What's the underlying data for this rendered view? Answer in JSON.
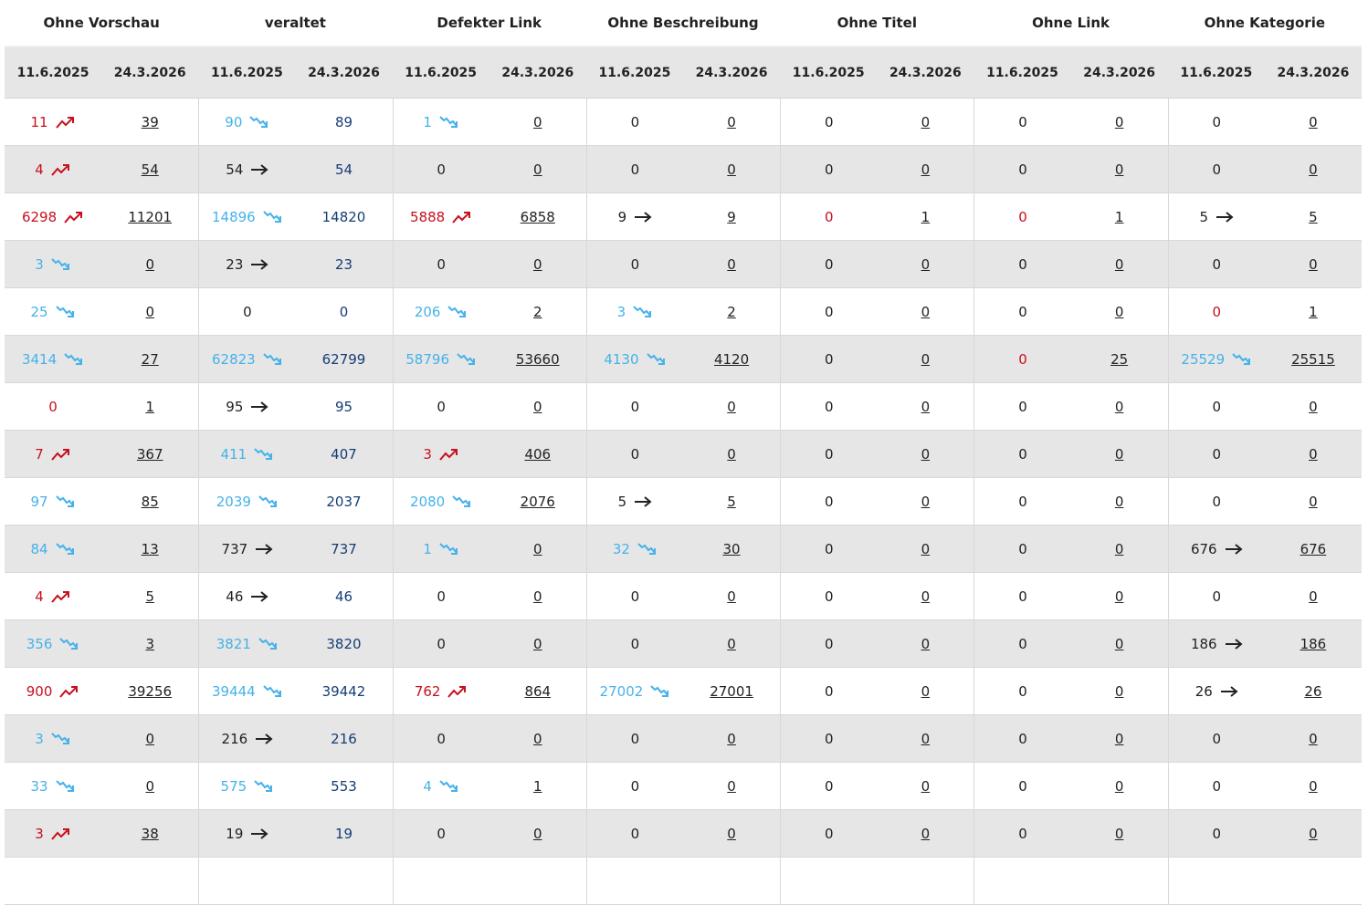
{
  "table": {
    "groups": [
      "Ohne Vorschau",
      "veraltet",
      "Defekter Link",
      "Ohne Beschreibung",
      "Ohne Titel",
      "Ohne Link",
      "Ohne Kategorie"
    ],
    "dates": [
      "11.6.2025",
      "24.3.2026"
    ],
    "rows": [
      [
        [
          11,
          39,
          "up"
        ],
        [
          90,
          89,
          "down"
        ],
        [
          1,
          0,
          "down"
        ],
        [
          0,
          0
        ],
        [
          0,
          0
        ],
        [
          0,
          0
        ],
        [
          0,
          0
        ]
      ],
      [
        [
          4,
          54,
          "up"
        ],
        [
          54,
          54,
          "flat"
        ],
        [
          0,
          0
        ],
        [
          0,
          0
        ],
        [
          0,
          0
        ],
        [
          0,
          0
        ],
        [
          0,
          0
        ]
      ],
      [
        [
          6298,
          11201,
          "up"
        ],
        [
          14896,
          14820,
          "down"
        ],
        [
          5888,
          6858,
          "up"
        ],
        [
          9,
          9,
          "flat"
        ],
        [
          0,
          1,
          "rise"
        ],
        [
          0,
          1,
          "rise"
        ],
        [
          5,
          5,
          "flat"
        ]
      ],
      [
        [
          3,
          0,
          "down"
        ],
        [
          23,
          23,
          "flat"
        ],
        [
          0,
          0
        ],
        [
          0,
          0
        ],
        [
          0,
          0
        ],
        [
          0,
          0
        ],
        [
          0,
          0
        ]
      ],
      [
        [
          25,
          0,
          "down"
        ],
        [
          0,
          0
        ],
        [
          206,
          2,
          "down"
        ],
        [
          3,
          2,
          "down"
        ],
        [
          0,
          0
        ],
        [
          0,
          0
        ],
        [
          0,
          1,
          "rise"
        ]
      ],
      [
        [
          3414,
          27,
          "down"
        ],
        [
          62823,
          62799,
          "down"
        ],
        [
          58796,
          53660,
          "down"
        ],
        [
          4130,
          4120,
          "down"
        ],
        [
          0,
          0
        ],
        [
          0,
          25,
          "rise"
        ],
        [
          25529,
          25515,
          "down"
        ]
      ],
      [
        [
          0,
          1,
          "rise"
        ],
        [
          95,
          95,
          "flat"
        ],
        [
          0,
          0
        ],
        [
          0,
          0
        ],
        [
          0,
          0
        ],
        [
          0,
          0
        ],
        [
          0,
          0
        ]
      ],
      [
        [
          7,
          367,
          "up"
        ],
        [
          411,
          407,
          "down"
        ],
        [
          3,
          406,
          "up"
        ],
        [
          0,
          0
        ],
        [
          0,
          0
        ],
        [
          0,
          0
        ],
        [
          0,
          0
        ]
      ],
      [
        [
          97,
          85,
          "down"
        ],
        [
          2039,
          2037,
          "down"
        ],
        [
          2080,
          2076,
          "down"
        ],
        [
          5,
          5,
          "flat"
        ],
        [
          0,
          0
        ],
        [
          0,
          0
        ],
        [
          0,
          0
        ]
      ],
      [
        [
          84,
          13,
          "down"
        ],
        [
          737,
          737,
          "flat"
        ],
        [
          1,
          0,
          "down"
        ],
        [
          32,
          30,
          "down"
        ],
        [
          0,
          0
        ],
        [
          0,
          0
        ],
        [
          676,
          676,
          "flat"
        ]
      ],
      [
        [
          4,
          5,
          "up"
        ],
        [
          46,
          46,
          "flat"
        ],
        [
          0,
          0
        ],
        [
          0,
          0
        ],
        [
          0,
          0
        ],
        [
          0,
          0
        ],
        [
          0,
          0
        ]
      ],
      [
        [
          356,
          3,
          "down"
        ],
        [
          3821,
          3820,
          "down"
        ],
        [
          0,
          0
        ],
        [
          0,
          0
        ],
        [
          0,
          0
        ],
        [
          0,
          0
        ],
        [
          186,
          186,
          "flat"
        ]
      ],
      [
        [
          900,
          39256,
          "up"
        ],
        [
          39444,
          39442,
          "down"
        ],
        [
          762,
          864,
          "up"
        ],
        [
          27002,
          27001,
          "down"
        ],
        [
          0,
          0
        ],
        [
          0,
          0
        ],
        [
          26,
          26,
          "flat"
        ]
      ],
      [
        [
          3,
          0,
          "down"
        ],
        [
          216,
          216,
          "flat"
        ],
        [
          0,
          0
        ],
        [
          0,
          0
        ],
        [
          0,
          0
        ],
        [
          0,
          0
        ],
        [
          0,
          0
        ]
      ],
      [
        [
          33,
          0,
          "down"
        ],
        [
          575,
          553,
          "down"
        ],
        [
          4,
          1,
          "down"
        ],
        [
          0,
          0
        ],
        [
          0,
          0
        ],
        [
          0,
          0
        ],
        [
          0,
          0
        ]
      ],
      [
        [
          3,
          38,
          "up"
        ],
        [
          19,
          19,
          "flat"
        ],
        [
          0,
          0
        ],
        [
          0,
          0
        ],
        [
          0,
          0
        ],
        [
          0,
          0
        ],
        [
          0,
          0
        ]
      ]
    ]
  }
}
